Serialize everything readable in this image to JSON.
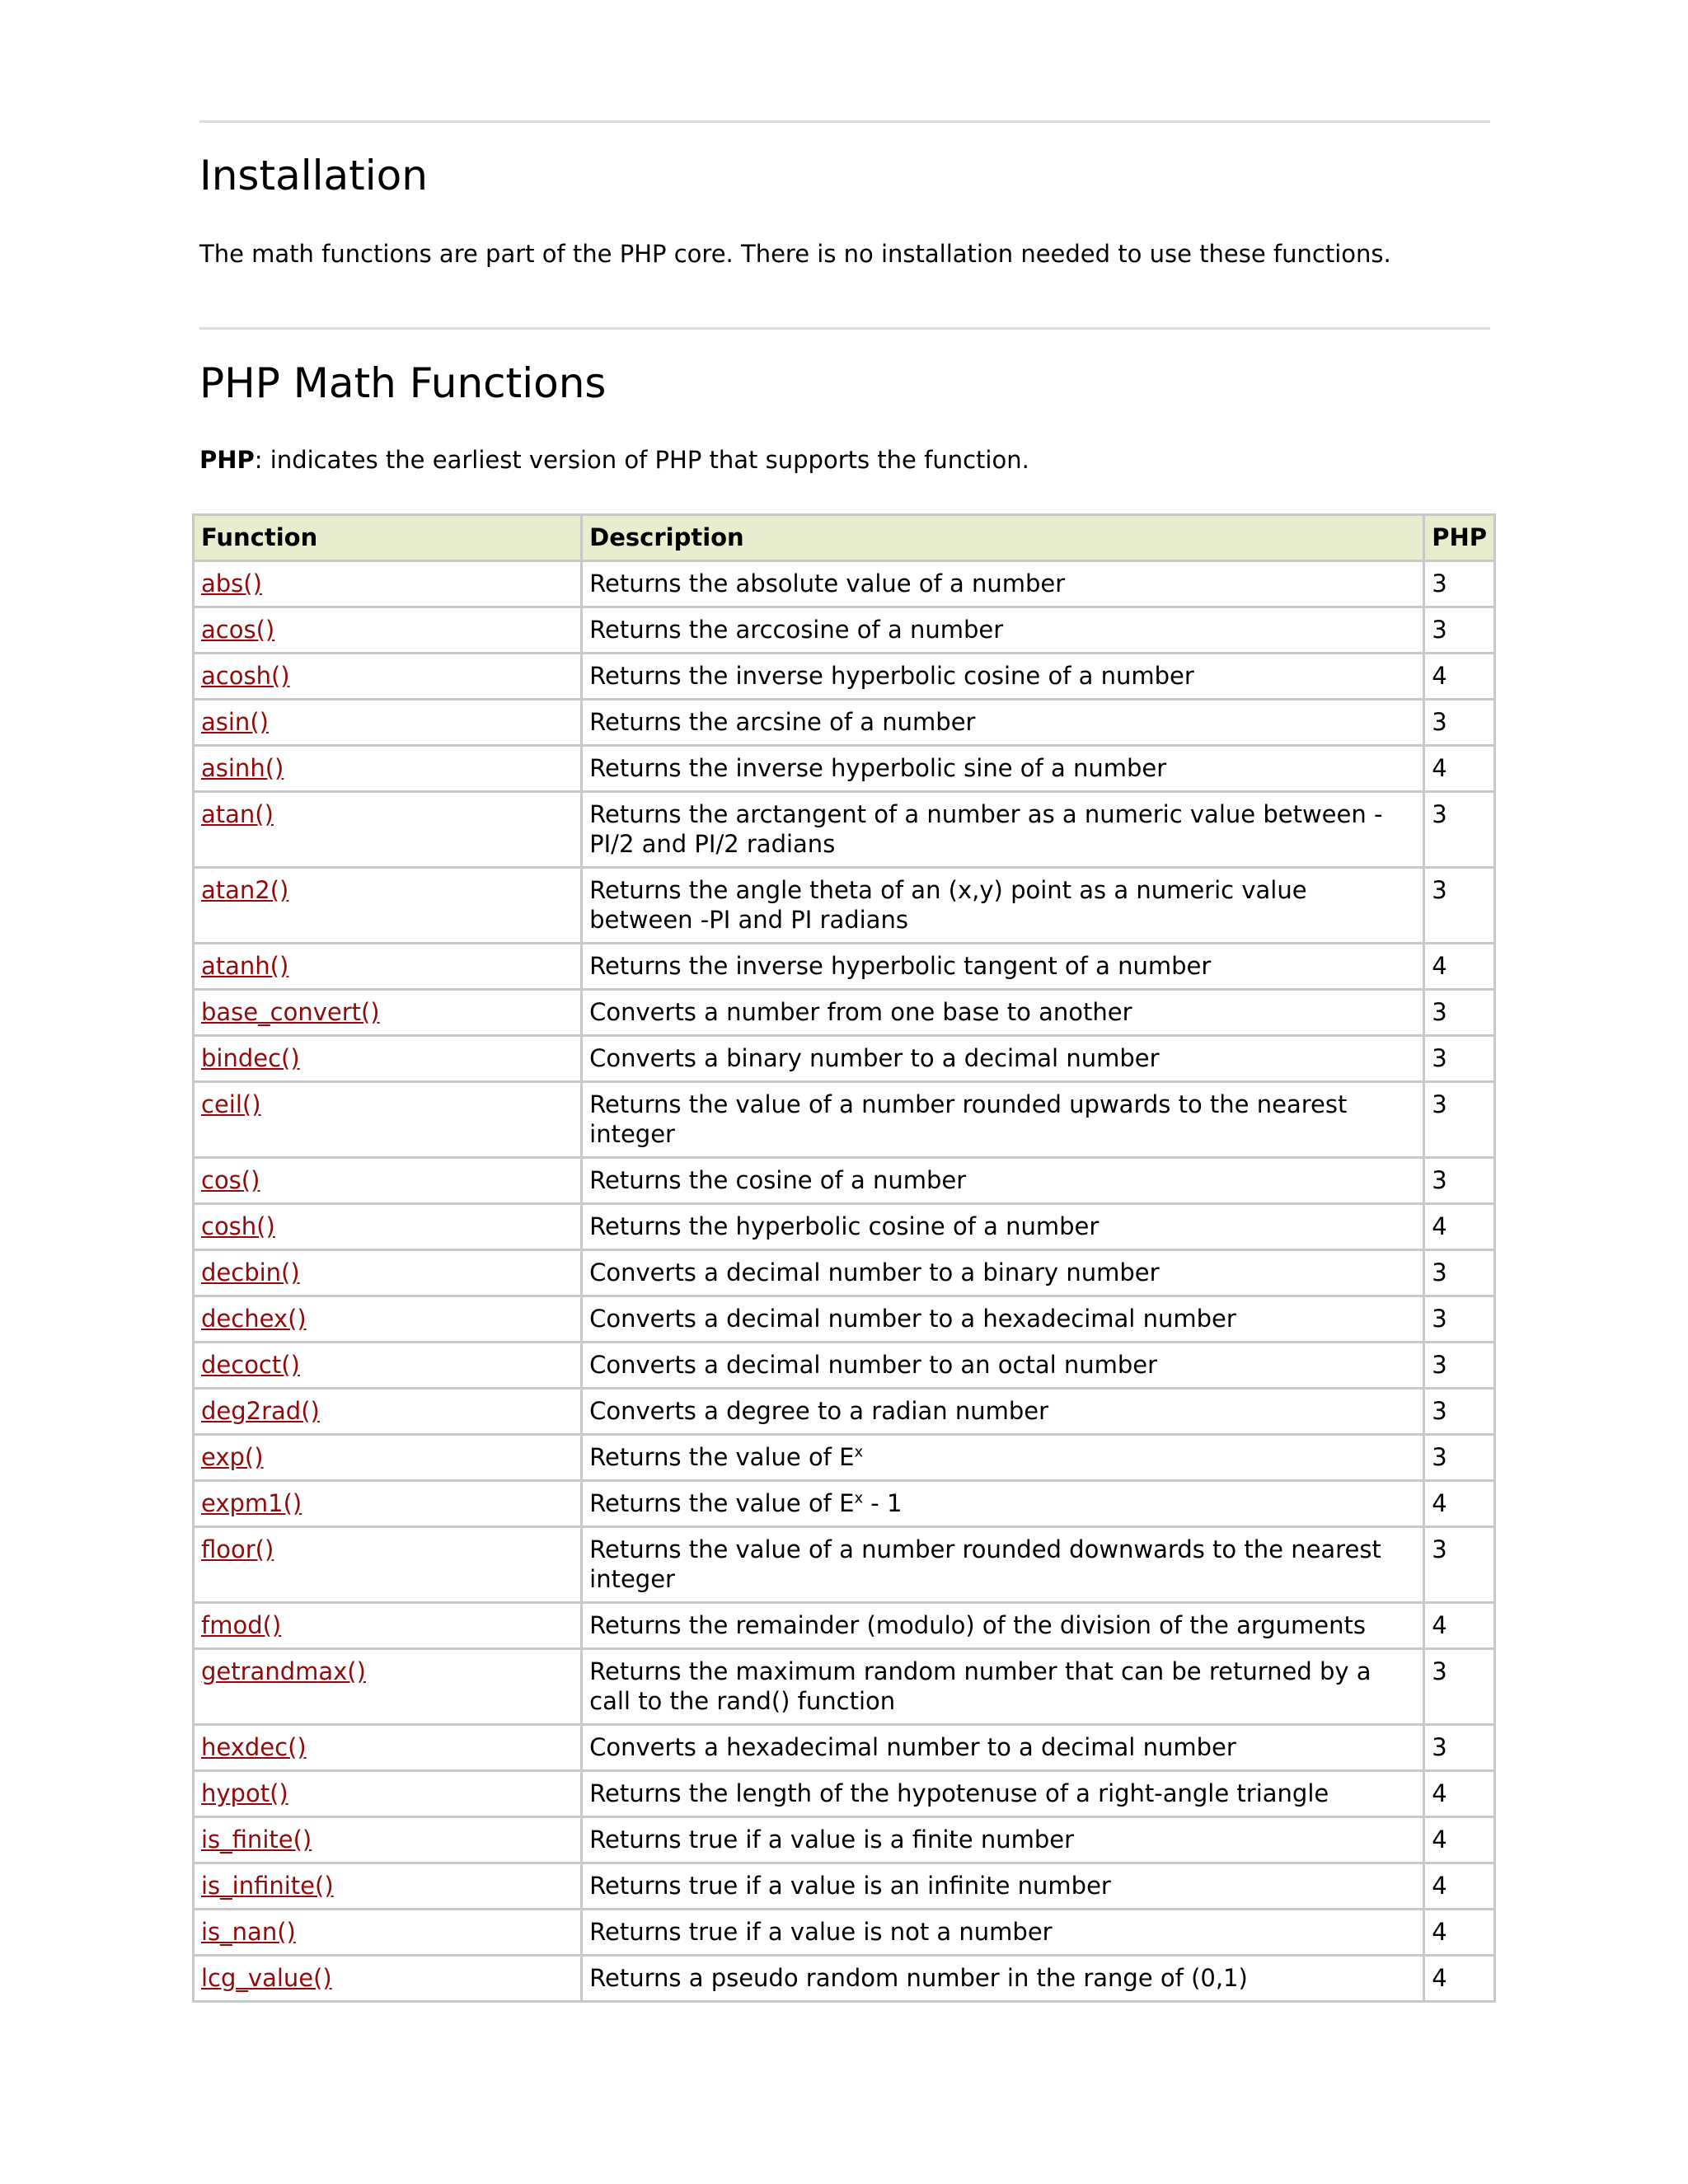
{
  "installation": {
    "heading": "Installation",
    "text": "The math functions are part of the PHP core. There is no installation needed to use these functions."
  },
  "math": {
    "heading": "PHP Math Functions",
    "note_bold": "PHP",
    "note_text": ": indicates the earliest version of PHP that supports the function."
  },
  "table": {
    "headers": [
      "Function",
      "Description",
      "PHP"
    ],
    "link_color": "#900b09",
    "header_bg": "#e8edce",
    "rows": [
      {
        "fn": "abs()",
        "desc": "Returns the absolute value of a number",
        "php": "3"
      },
      {
        "fn": "acos()",
        "desc": "Returns the arccosine of a number",
        "php": "3"
      },
      {
        "fn": "acosh()",
        "desc": "Returns the inverse hyperbolic cosine of a number",
        "php": "4"
      },
      {
        "fn": "asin()",
        "desc": "Returns the arcsine of a number",
        "php": "3"
      },
      {
        "fn": "asinh()",
        "desc": "Returns the inverse hyperbolic sine of a number",
        "php": "4"
      },
      {
        "fn": "atan()",
        "desc": "Returns the arctangent of a number as a numeric value between -PI/2 and PI/2 radians",
        "php": "3"
      },
      {
        "fn": "atan2()",
        "desc": "Returns the angle theta of an (x,y) point as a numeric value between -PI and PI radians",
        "php": "3"
      },
      {
        "fn": "atanh()",
        "desc": "Returns the inverse hyperbolic tangent of a number",
        "php": "4"
      },
      {
        "fn": "base_convert()",
        "desc": "Converts a number from one base to another",
        "php": "3"
      },
      {
        "fn": "bindec()",
        "desc": "Converts a binary number to a decimal number",
        "php": "3"
      },
      {
        "fn": "ceil()",
        "desc": "Returns the value of a number rounded upwards to the nearest integer",
        "php": "3"
      },
      {
        "fn": "cos()",
        "desc": "Returns the cosine of a number",
        "php": "3"
      },
      {
        "fn": "cosh()",
        "desc": "Returns the hyperbolic cosine of a number",
        "php": "4"
      },
      {
        "fn": "decbin()",
        "desc": "Converts a decimal number to a binary number",
        "php": "3"
      },
      {
        "fn": "dechex()",
        "desc": "Converts a decimal number to a hexadecimal number",
        "php": "3"
      },
      {
        "fn": "decoct()",
        "desc": "Converts a decimal number to an octal number",
        "php": "3"
      },
      {
        "fn": "deg2rad()",
        "desc": "Converts a degree to a radian number",
        "php": "3"
      },
      {
        "fn": "exp()",
        "desc": "Returns the value of E",
        "sup": "x",
        "suffix": "",
        "php": "3"
      },
      {
        "fn": "expm1()",
        "desc": "Returns the value of E",
        "sup": "x",
        "suffix": " - 1",
        "php": "4"
      },
      {
        "fn": "floor()",
        "desc": "Returns the value of a number rounded downwards to the nearest integer",
        "php": "3"
      },
      {
        "fn": "fmod()",
        "desc": "Returns the remainder (modulo) of the division of the arguments",
        "php": "4"
      },
      {
        "fn": "getrandmax()",
        "desc": "Returns the maximum random number that can be returned by a call to the rand() function",
        "php": "3"
      },
      {
        "fn": "hexdec()",
        "desc": "Converts a hexadecimal number to a decimal number",
        "php": "3"
      },
      {
        "fn": "hypot()",
        "desc": "Returns the length of the hypotenuse of a right-angle triangle",
        "php": "4"
      },
      {
        "fn": "is_finite()",
        "desc": "Returns true if a value is a finite number",
        "php": "4"
      },
      {
        "fn": "is_infinite()",
        "desc": "Returns true if a value is an infinite number",
        "php": "4"
      },
      {
        "fn": "is_nan()",
        "desc": "Returns true if a value is not a number",
        "php": "4"
      },
      {
        "fn": "lcg_value()",
        "desc": "Returns a pseudo random number in the range of (0,1)",
        "php": "4"
      }
    ]
  }
}
